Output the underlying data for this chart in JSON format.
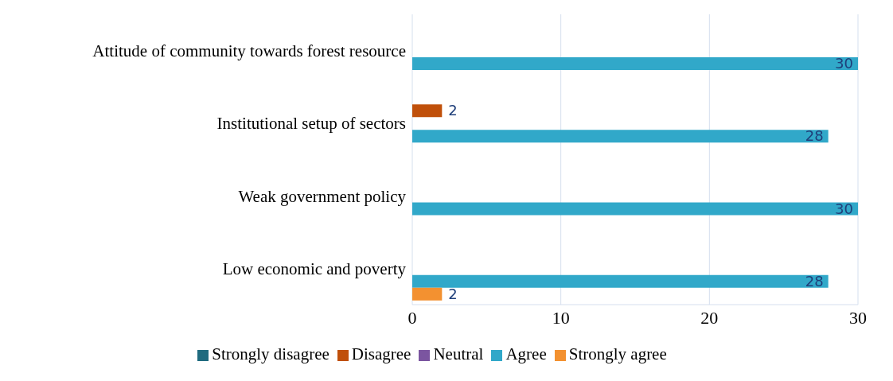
{
  "chart_data": {
    "type": "bar",
    "orientation": "horizontal",
    "categories": [
      "Attitude of community towards forest resource",
      "Institutional setup of sectors",
      "Weak government  policy",
      "Low economic  and poverty"
    ],
    "series": [
      {
        "name": "Strongly disagree",
        "color": "#1f6b7f",
        "values": [
          null,
          null,
          null,
          null
        ]
      },
      {
        "name": "Disagree",
        "color": "#c0500a",
        "values": [
          null,
          2,
          null,
          null
        ]
      },
      {
        "name": "Neutral",
        "color": "#7b55a0",
        "values": [
          null,
          null,
          null,
          null
        ]
      },
      {
        "name": "Agree",
        "color": "#31a8c9",
        "values": [
          30,
          28,
          30,
          28
        ]
      },
      {
        "name": "Strongly agree",
        "color": "#f39130",
        "values": [
          null,
          null,
          null,
          2
        ]
      }
    ],
    "xlim": [
      0,
      30
    ],
    "xticks": [
      0,
      10,
      20,
      30
    ],
    "grid": "x",
    "legend": "bottom",
    "data_labels": true
  }
}
